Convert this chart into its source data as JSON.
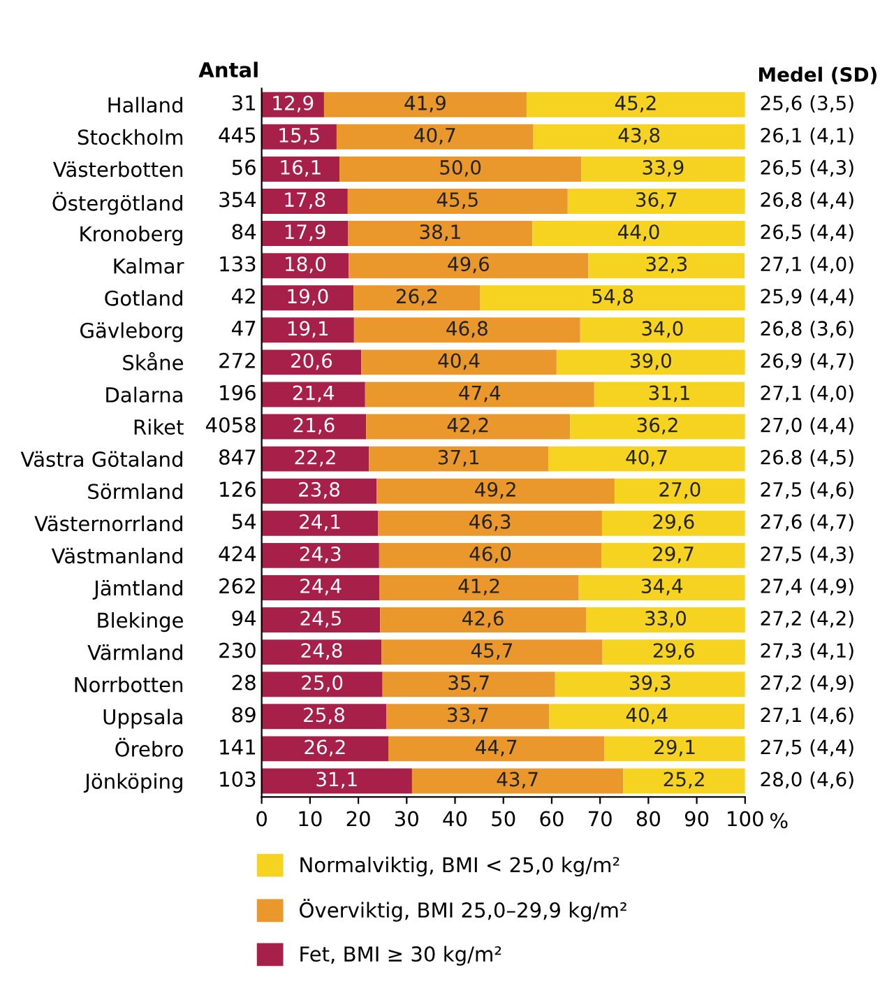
{
  "chart_data": {
    "type": "bar",
    "orientation": "horizontal",
    "stacked": true,
    "xlabel": "%",
    "categories": [
      "Halland",
      "Stockholm",
      "Västerbotten",
      "Östergötland",
      "Kronoberg",
      "Kalmar",
      "Gotland",
      "Gävleborg",
      "Skåne",
      "Dalarna",
      "Riket",
      "Västra Götaland",
      "Sörmland",
      "Västernorrland",
      "Västmanland",
      "Jämtland",
      "Blekinge",
      "Värmland",
      "Norrbotten",
      "Uppsala",
      "Örebro",
      "Jönköping"
    ],
    "series": [
      {
        "name": "Fet, BMI ≥ 30 kg/m²",
        "color": "#a6204a",
        "values": [
          12.9,
          15.5,
          16.1,
          17.8,
          17.9,
          18.0,
          19.0,
          19.1,
          20.6,
          21.4,
          21.6,
          22.2,
          23.8,
          24.1,
          24.3,
          24.4,
          24.5,
          24.8,
          25.0,
          25.8,
          26.2,
          31.1
        ],
        "value_labels": [
          "12,9",
          "15,5",
          "16,1",
          "17,8",
          "17,9",
          "18,0",
          "19,0",
          "19,1",
          "20,6",
          "21,4",
          "21,6",
          "22,2",
          "23,8",
          "24,1",
          "24,3",
          "24,4",
          "24,5",
          "24,8",
          "25,0",
          "25,8",
          "26,2",
          "31,1"
        ]
      },
      {
        "name": "Överviktig, BMI 25,0–29,9 kg/m²",
        "color": "#ea982c",
        "values": [
          41.9,
          40.7,
          50.0,
          45.5,
          38.1,
          49.6,
          26.2,
          46.8,
          40.4,
          47.4,
          42.2,
          37.1,
          49.2,
          46.3,
          46.0,
          41.2,
          42.6,
          45.7,
          35.7,
          33.7,
          44.7,
          43.7
        ],
        "value_labels": [
          "41,9",
          "40,7",
          "50,0",
          "45,5",
          "38,1",
          "49,6",
          "26,2",
          "46,8",
          "40,4",
          "47,4",
          "42,2",
          "37,1",
          "49,2",
          "46,3",
          "46,0",
          "41,2",
          "42,6",
          "45,7",
          "35,7",
          "33,7",
          "44,7",
          "43,7"
        ]
      },
      {
        "name": "Normalviktig, BMI < 25,0 kg/m²",
        "color": "#f5d320",
        "values": [
          45.2,
          43.8,
          33.9,
          36.7,
          44.0,
          32.3,
          54.8,
          34.0,
          39.0,
          31.1,
          36.2,
          40.7,
          27.0,
          29.6,
          29.7,
          34.4,
          33.0,
          29.6,
          39.3,
          40.4,
          29.1,
          25.2
        ],
        "value_labels": [
          "45,2",
          "43,8",
          "33,9",
          "36,7",
          "44,0",
          "32,3",
          "54,8",
          "34,0",
          "39,0",
          "31,1",
          "36,2",
          "40,7",
          "27,0",
          "29,6",
          "29,7",
          "34,4",
          "33,0",
          "29,6",
          "39,3",
          "40,4",
          "29,1",
          "25,2"
        ]
      }
    ],
    "xlim": [
      0,
      100
    ],
    "xticks": [
      0,
      10,
      20,
      30,
      40,
      50,
      60,
      70,
      80,
      90,
      100
    ],
    "grid": false,
    "legend": "bottom",
    "annotations": [
      "Antal",
      "31",
      "445",
      "56",
      "354",
      "84",
      "133",
      "42",
      "47",
      "272",
      "196",
      "4058",
      "847",
      "126",
      "54",
      "424",
      "262",
      "94",
      "230",
      "28",
      "89",
      "141",
      "103",
      "Medel (SD)",
      "25,6 (3,5)",
      "26,1 (4,1)",
      "26,5 (4,3)",
      "26,8 (4,4)",
      "26,5 (4,4)",
      "27,1 (4,0)",
      "25,9 (4,4)",
      "26,8 (3,6)",
      "26,9 (4,7)",
      "27,1 (4,0)",
      "27,0 (4,4)",
      "26.8 (4,5)",
      "27,5 (4,6)",
      "27,6 (4,7)",
      "27,5 (4,3)",
      "27,4 (4,9)",
      "27,2 (4,2)",
      "27,3 (4,1)",
      "27,2 (4,9)",
      "27,1 (4,6)",
      "27,5 (4,4)",
      "28,0 (4,6)"
    ]
  }
}
